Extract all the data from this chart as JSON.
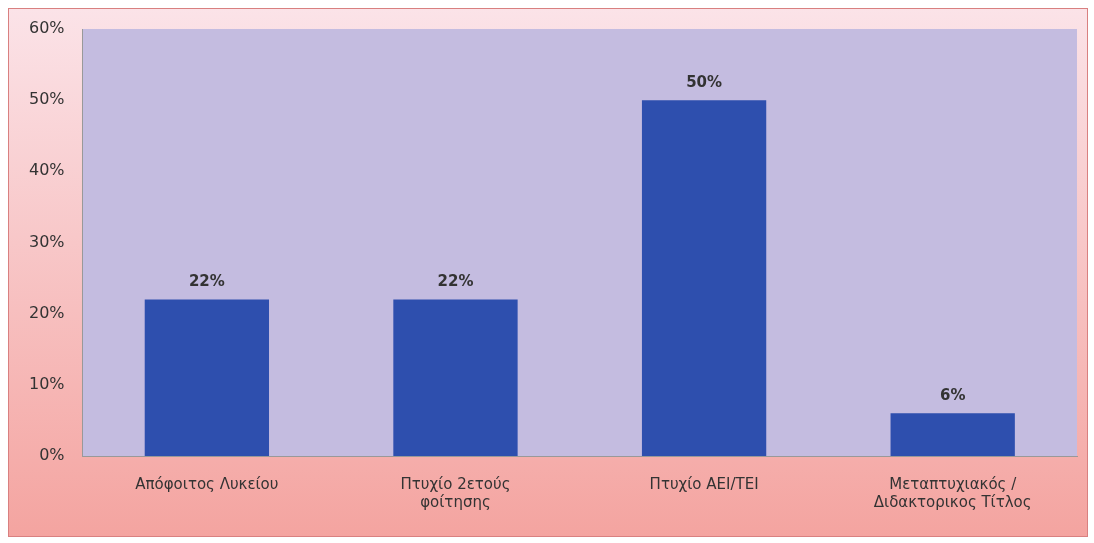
{
  "chart_data": {
    "type": "bar",
    "categories": [
      "Απόφοιτος Λυκείου",
      "Πτυχίο 2ετούς φοίτησης",
      "Πτυχίο ΑΕΙ/ΤΕΙ",
      "Μεταπτυχιακός / Διδακτορικος Τίτλος"
    ],
    "values": [
      22,
      22,
      50,
      6
    ],
    "value_labels": [
      "22%",
      "22%",
      "50%",
      "6%"
    ],
    "color": "#2e4fae",
    "ylim": [
      0,
      60
    ],
    "yticks": [
      {
        "value": 0,
        "label": "0%"
      },
      {
        "value": 10,
        "label": "10%"
      },
      {
        "value": 20,
        "label": "20%"
      },
      {
        "value": 30,
        "label": "30%"
      },
      {
        "value": 40,
        "label": "40%"
      },
      {
        "value": 50,
        "label": "50%"
      },
      {
        "value": 60,
        "label": "60%"
      }
    ],
    "grid": false,
    "legend": false
  }
}
